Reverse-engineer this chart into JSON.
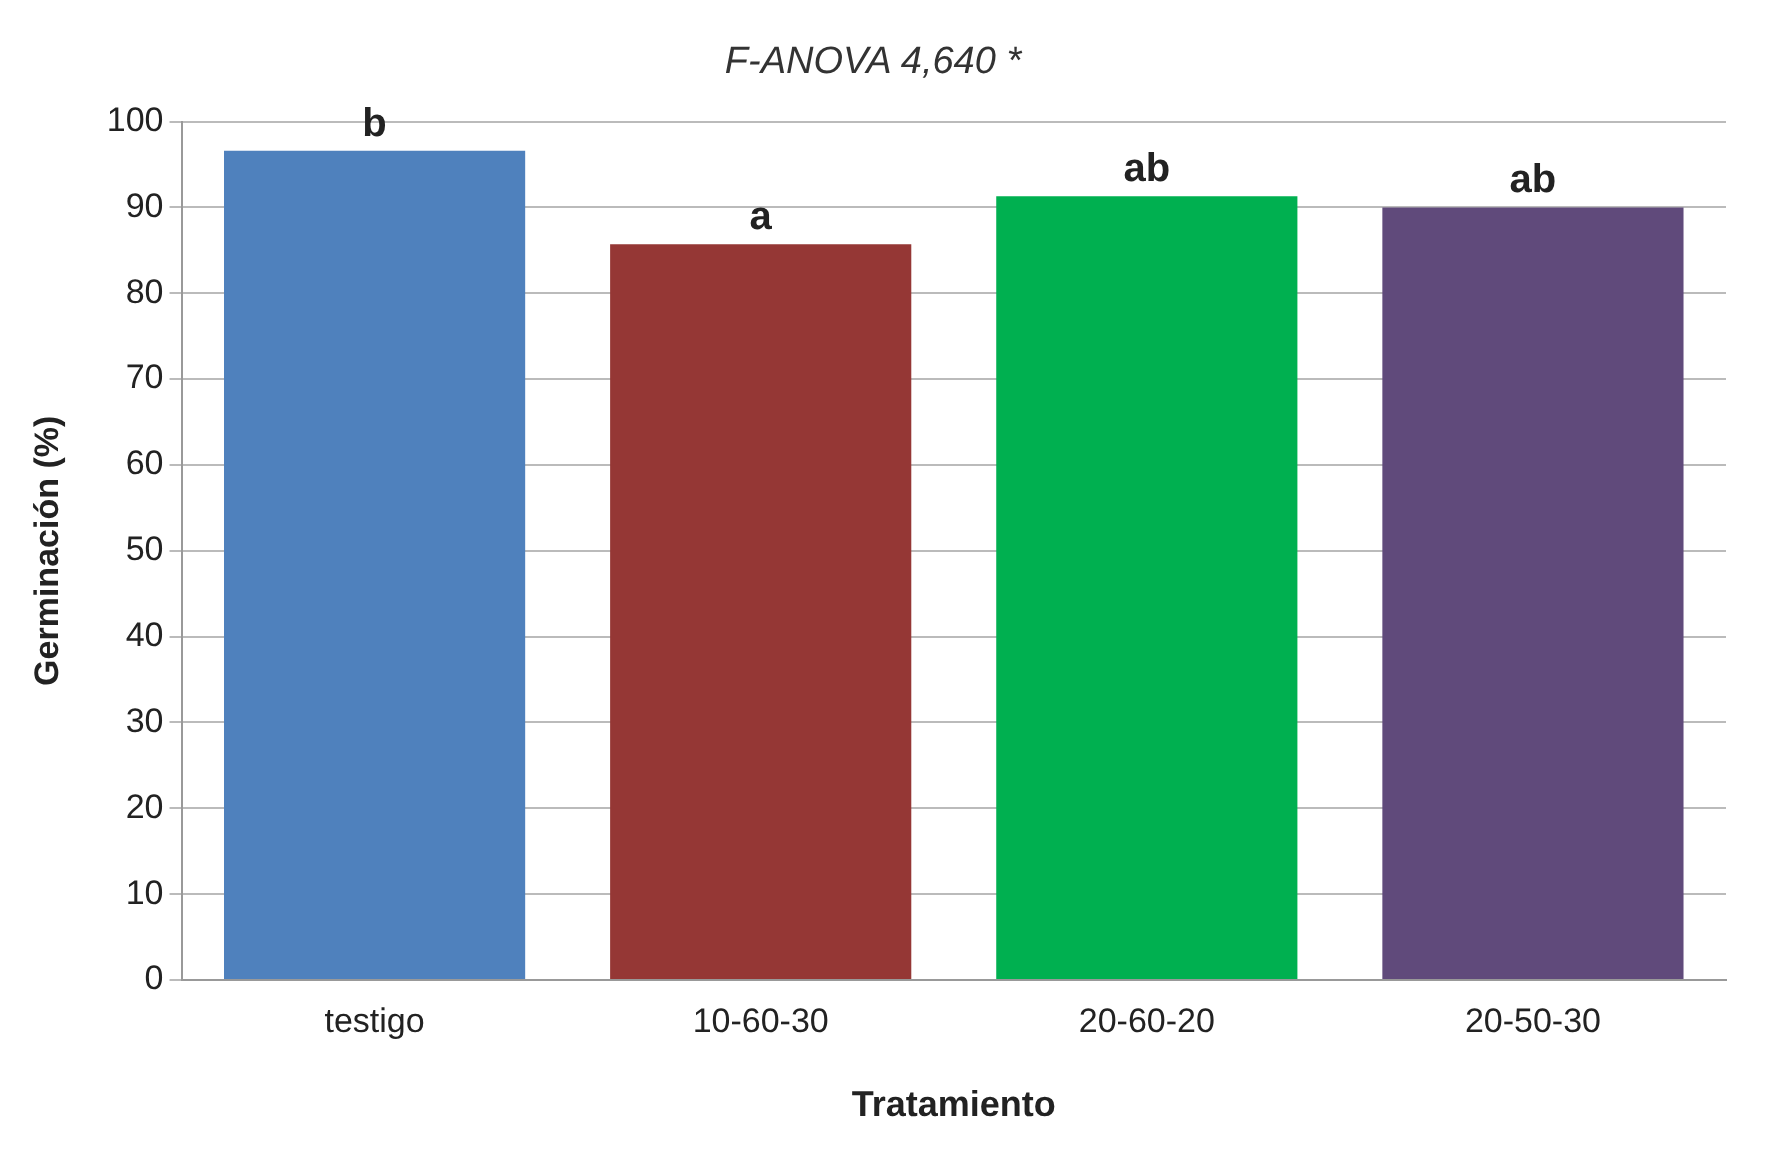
{
  "chart_data": {
    "type": "bar",
    "title": "F-ANOVA 4,640 *",
    "xlabel": "Tratamiento",
    "ylabel": "Germinación (%)",
    "categories": [
      "testigo",
      "10-60-30",
      "20-60-20",
      "20-50-30"
    ],
    "values": [
      96.6,
      85.7,
      91.3,
      90.0
    ],
    "colors": [
      "#4f81bd",
      "#953735",
      "#00b050",
      "#604a7b"
    ],
    "ylim": [
      0,
      100
    ],
    "yticks": [
      0,
      10,
      20,
      30,
      40,
      50,
      60,
      70,
      80,
      90,
      100
    ],
    "grid": "y",
    "legend": false,
    "annotations": [
      {
        "text": "b",
        "x": "testigo",
        "y": 96.6
      },
      {
        "text": "a",
        "x": "10-60-30",
        "y": 85.7
      },
      {
        "text": "ab",
        "x": "20-60-20",
        "y": 91.3
      },
      {
        "text": "ab",
        "x": "20-50-30",
        "y": 90.0
      }
    ]
  }
}
